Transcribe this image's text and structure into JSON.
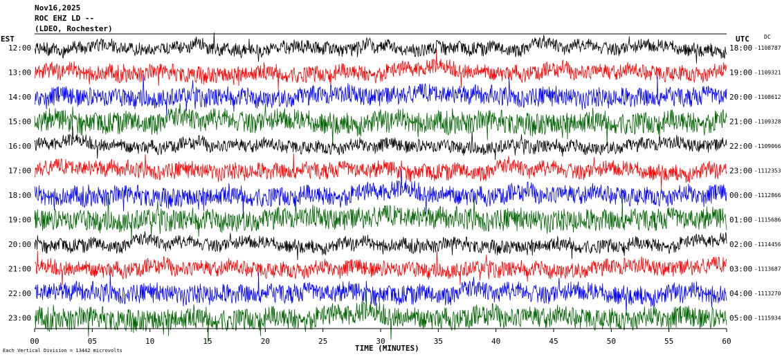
{
  "header": {
    "date": "Nov16,2025",
    "station": "ROC EHZ LD --",
    "network": "(LDEO, Rochester)"
  },
  "left_zone_label": "EST",
  "right_zone_label": "UTC",
  "dc_label": "DC",
  "footer_note": "Each Vertical Division = 13442 microvolts",
  "chart_data": {
    "type": "line",
    "title": "",
    "xlabel": "TIME (MINUTES)",
    "ylabel": "",
    "xlim": [
      0,
      60
    ],
    "x_ticks": [
      "00",
      "05",
      "10",
      "15",
      "20",
      "25",
      "30",
      "35",
      "40",
      "45",
      "50",
      "55",
      "60"
    ],
    "grid": false,
    "trace_colors": [
      "#000000",
      "#ff0000",
      "#0000ff",
      "#006400"
    ],
    "rows": [
      {
        "est": "12:00",
        "utc": "18:00",
        "dc": "-1108787"
      },
      {
        "est": "13:00",
        "utc": "19:00",
        "dc": "-1109321"
      },
      {
        "est": "14:00",
        "utc": "20:00",
        "dc": "-1108612"
      },
      {
        "est": "15:00",
        "utc": "21:00",
        "dc": "-1109328"
      },
      {
        "est": "16:00",
        "utc": "22:00",
        "dc": "-1109066"
      },
      {
        "est": "17:00",
        "utc": "23:00",
        "dc": "-1112353"
      },
      {
        "est": "18:00",
        "utc": "00:00",
        "dc": "-1112866"
      },
      {
        "est": "19:00",
        "utc": "01:00",
        "dc": "-1115686"
      },
      {
        "est": "20:00",
        "utc": "02:00",
        "dc": "-1114456"
      },
      {
        "est": "21:00",
        "utc": "03:00",
        "dc": "-1113687"
      },
      {
        "est": "22:00",
        "utc": "04:00",
        "dc": "-1113270"
      },
      {
        "est": "23:00",
        "utc": "05:00",
        "dc": "-1115934"
      }
    ]
  }
}
